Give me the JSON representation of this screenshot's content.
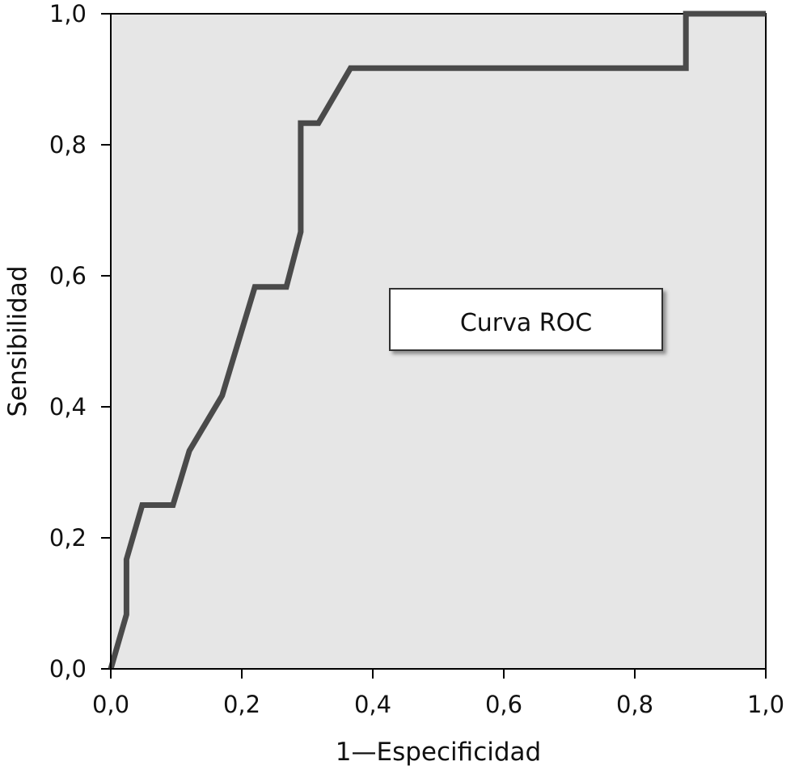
{
  "chart_data": {
    "type": "line",
    "title": "",
    "xlabel": "1—Especificidad",
    "ylabel": "Sensibilidad",
    "xlim": [
      0.0,
      1.0
    ],
    "ylim": [
      0.0,
      1.0
    ],
    "x_ticks": [
      "0,0",
      "0,2",
      "0,4",
      "0,6",
      "0,8",
      "1,0"
    ],
    "y_ticks": [
      "0,0",
      "0,2",
      "0,4",
      "0,6",
      "0,8",
      "1,0"
    ],
    "grid": false,
    "annotation": "Curva ROC",
    "series": [
      {
        "x": [
          0.0,
          0.024,
          0.024,
          0.048,
          0.095,
          0.12,
          0.17,
          0.22,
          0.268,
          0.29,
          0.29,
          0.317,
          0.366,
          0.878,
          0.878,
          1.0
        ],
        "y": [
          0.0,
          0.083,
          0.167,
          0.25,
          0.25,
          0.333,
          0.417,
          0.583,
          0.583,
          0.667,
          0.833,
          0.833,
          0.917,
          0.917,
          1.0,
          1.0
        ]
      }
    ],
    "colors": {
      "plot_background": "#e6e6e6",
      "line": "#4a4a4a",
      "axis": "#000000"
    }
  }
}
